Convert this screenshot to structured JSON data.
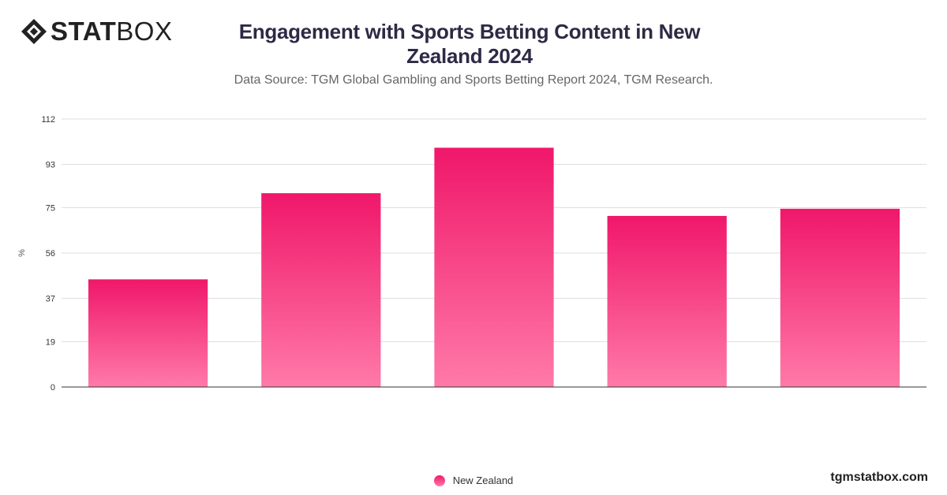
{
  "brand": {
    "logo_bold": "STAT",
    "logo_light": "BOX",
    "site": "tgmstatbox.com"
  },
  "colors": {
    "bar_top": "#f0176a",
    "bar_bottom": "#ff7aa8",
    "grid": "#dddddd",
    "axis": "#333333"
  },
  "chart_data": {
    "type": "bar",
    "title": "Engagement with Sports Betting Content in New Zealand 2024",
    "subtitle": "Data Source: TGM Global Gambling and Sports Betting Report 2024, TGM Research.",
    "xlabel": "",
    "ylabel": "%",
    "categories": [
      "",
      "",
      "",
      "",
      ""
    ],
    "series": [
      {
        "name": "New Zealand",
        "values": [
          45,
          81,
          100,
          71.5,
          74.5
        ]
      }
    ],
    "ylim": [
      0,
      112
    ],
    "yticks": [
      0,
      19,
      37,
      56,
      75,
      93,
      112
    ],
    "grid": true,
    "legend_position": "bottom"
  }
}
